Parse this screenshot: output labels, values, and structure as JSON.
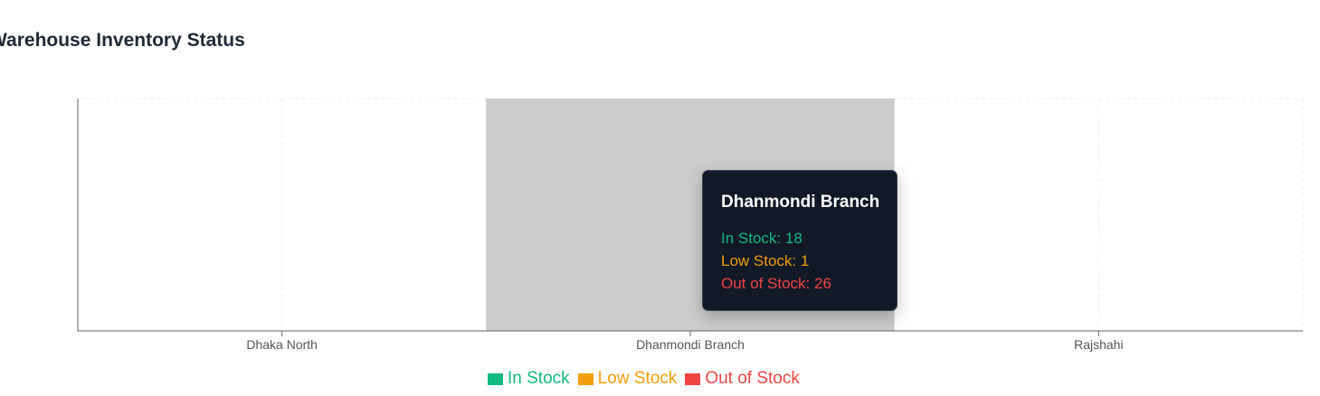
{
  "colors": {
    "in_stock": "#10b981",
    "low_stock": "#f59e0b",
    "out_of_stock": "#ef4444",
    "highlight": "#cccccc",
    "grid": "#eeeeee",
    "axis": "#666666"
  },
  "chart_data": {
    "type": "bar",
    "title": "Warehouse Inventory Status",
    "categories": [
      "Dhaka North",
      "Dhanmondi Branch",
      "Rajshahi"
    ],
    "series": [
      {
        "name": "In Stock",
        "values": [
          null,
          18,
          null
        ]
      },
      {
        "name": "Low Stock",
        "values": [
          null,
          1,
          null
        ]
      },
      {
        "name": "Out of Stock",
        "values": [
          null,
          26,
          null
        ]
      }
    ],
    "grid": true,
    "legend": "bottom-center",
    "active_category": "Dhanmondi Branch"
  },
  "tooltip": {
    "title": "Dhanmondi Branch",
    "rows": [
      {
        "text": "In Stock: 18"
      },
      {
        "text": "Low Stock: 1"
      },
      {
        "text": "Out of Stock: 26"
      }
    ]
  }
}
